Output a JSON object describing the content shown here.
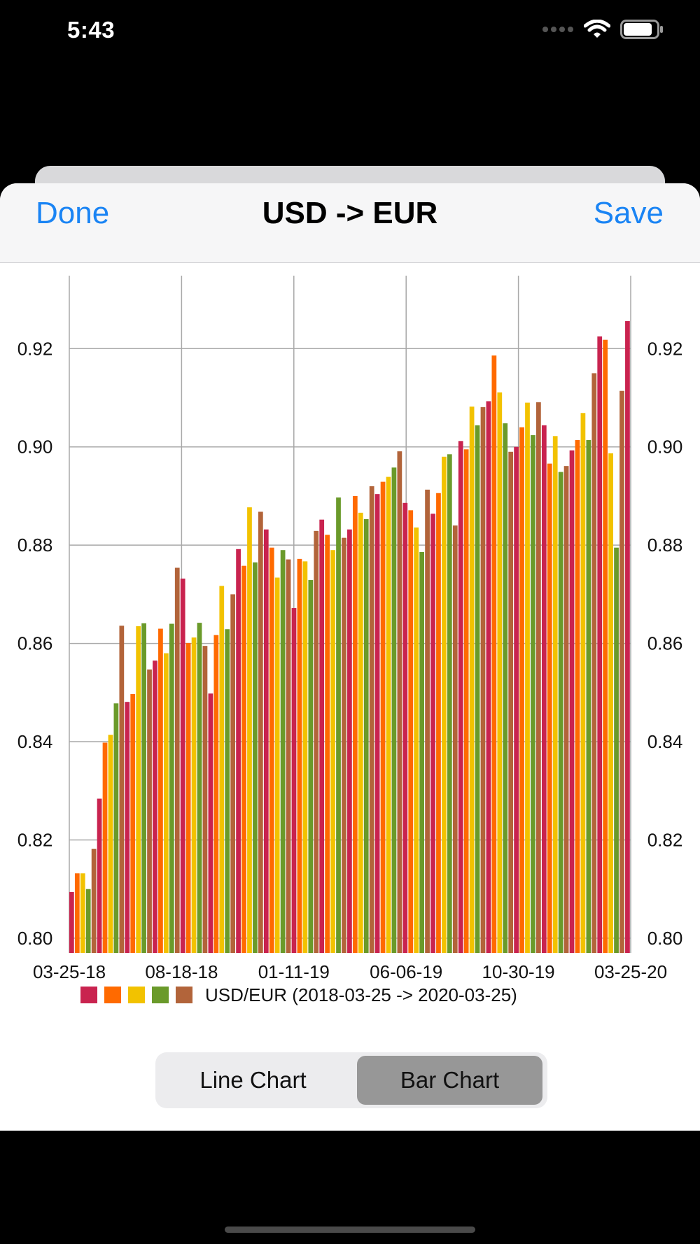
{
  "status_bar": {
    "time": "5:43",
    "icons": [
      "signal-dots-icon",
      "wifi-icon",
      "battery-icon"
    ]
  },
  "nav": {
    "left_label": "Done",
    "title": "USD -> EUR",
    "right_label": "Save"
  },
  "segmented_control": {
    "options": [
      "Line Chart",
      "Bar Chart"
    ],
    "selected": "Bar Chart"
  },
  "colors": {
    "accent": "#1a84f4",
    "segment_selected": "#979797"
  },
  "chart_data": {
    "type": "bar",
    "y_ticks": [
      "0.80",
      "0.82",
      "0.84",
      "0.86",
      "0.88",
      "0.90",
      "0.92"
    ],
    "x_ticks": [
      "03-25-18",
      "08-18-18",
      "01-11-19",
      "06-06-19",
      "10-30-19",
      "03-25-20"
    ],
    "ylim": [
      0.797,
      0.934
    ],
    "y_axis_both_sides": true,
    "grid": true,
    "legend": {
      "label": "USD/EUR (2018-03-25 -> 2020-03-25)",
      "position": "bottom",
      "swatches": [
        "#c9234f",
        "#ff6a00",
        "#f2c200",
        "#6a9a2a",
        "#b2643a"
      ]
    },
    "bar_colors_cycle": [
      "#c9234f",
      "#ff6a00",
      "#f2c200",
      "#6a9a2a",
      "#b2643a"
    ],
    "values": [
      0.8094,
      0.8132,
      0.8132,
      0.81,
      0.8182,
      0.8284,
      0.8398,
      0.8414,
      0.8478,
      0.8636,
      0.8481,
      0.8497,
      0.8635,
      0.8641,
      0.8547,
      0.8565,
      0.863,
      0.858,
      0.864,
      0.8754,
      0.8732,
      0.8601,
      0.8612,
      0.8642,
      0.8595,
      0.8498,
      0.8617,
      0.8717,
      0.8629,
      0.87,
      0.8792,
      0.8758,
      0.8877,
      0.8765,
      0.8868,
      0.8832,
      0.8795,
      0.8734,
      0.879,
      0.8771,
      0.8672,
      0.8772,
      0.8767,
      0.8729,
      0.8829,
      0.8852,
      0.8821,
      0.879,
      0.8897,
      0.8815,
      0.8832,
      0.89,
      0.8866,
      0.8853,
      0.892,
      0.8904,
      0.8929,
      0.8939,
      0.8958,
      0.8991,
      0.8886,
      0.8871,
      0.8836,
      0.8786,
      0.8913,
      0.8864,
      0.8906,
      0.898,
      0.8985,
      0.884,
      0.9012,
      0.8995,
      0.9082,
      0.9044,
      0.9081,
      0.9093,
      0.9186,
      0.9111,
      0.9048,
      0.899,
      0.9,
      0.904,
      0.909,
      0.9024,
      0.9091,
      0.9044,
      0.8966,
      0.9022,
      0.8949,
      0.8961,
      0.8993,
      0.9014,
      0.9069,
      0.9014,
      0.915,
      0.9225,
      0.9218,
      0.8987,
      0.8795,
      0.9114,
      0.9256
    ]
  }
}
